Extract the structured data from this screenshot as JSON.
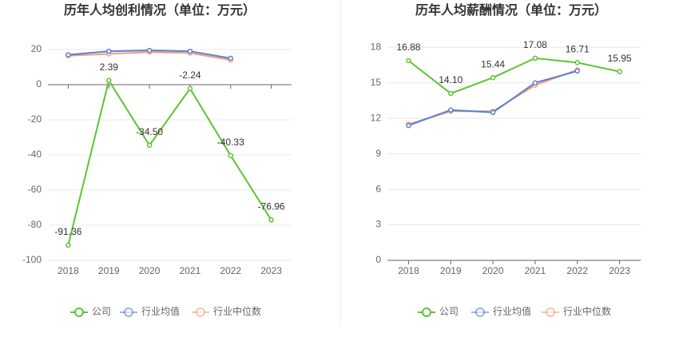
{
  "chart_data": [
    {
      "type": "line",
      "title": "历年人均创利情况（单位：万元）",
      "categories": [
        "2018",
        "2019",
        "2020",
        "2021",
        "2022",
        "2023"
      ],
      "series": [
        {
          "name": "公司",
          "color": "#5cc531",
          "values": [
            -91.36,
            2.39,
            -34.5,
            -2.24,
            -40.33,
            -76.96
          ],
          "value_labels": [
            "-91.36",
            "2.39",
            "-34.50",
            "-2.24",
            "-40.33",
            "-76.96"
          ]
        },
        {
          "name": "行业均值",
          "color": "#5b7fd6",
          "values": [
            17,
            19,
            19.5,
            19,
            15,
            null
          ]
        },
        {
          "name": "行业中位数",
          "color": "#f4a07a",
          "values": [
            16.5,
            17.5,
            18.5,
            18,
            14,
            null
          ]
        }
      ],
      "ylim": [
        -100,
        30
      ],
      "yticks": [
        -100,
        -80,
        -60,
        -40,
        -20,
        0,
        20
      ],
      "grid": true
    },
    {
      "type": "line",
      "title": "历年人均薪酬情况（单位：万元）",
      "categories": [
        "2018",
        "2019",
        "2020",
        "2021",
        "2022",
        "2023"
      ],
      "series": [
        {
          "name": "公司",
          "color": "#5cc531",
          "values": [
            16.88,
            14.1,
            15.44,
            17.08,
            16.71,
            15.95
          ],
          "value_labels": [
            "16.88",
            "14.10",
            "15.44",
            "17.08",
            "16.71",
            "15.95"
          ]
        },
        {
          "name": "行业均值",
          "color": "#5b7fd6",
          "values": [
            11.4,
            12.7,
            12.5,
            15.0,
            16.0,
            null
          ]
        },
        {
          "name": "行业中位数",
          "color": "#f4a07a",
          "values": [
            11.5,
            12.6,
            12.6,
            14.8,
            16.1,
            null
          ]
        }
      ],
      "ylim": [
        0,
        19.3
      ],
      "yticks": [
        0,
        3,
        6,
        9,
        12,
        15,
        18
      ],
      "grid": true
    }
  ]
}
